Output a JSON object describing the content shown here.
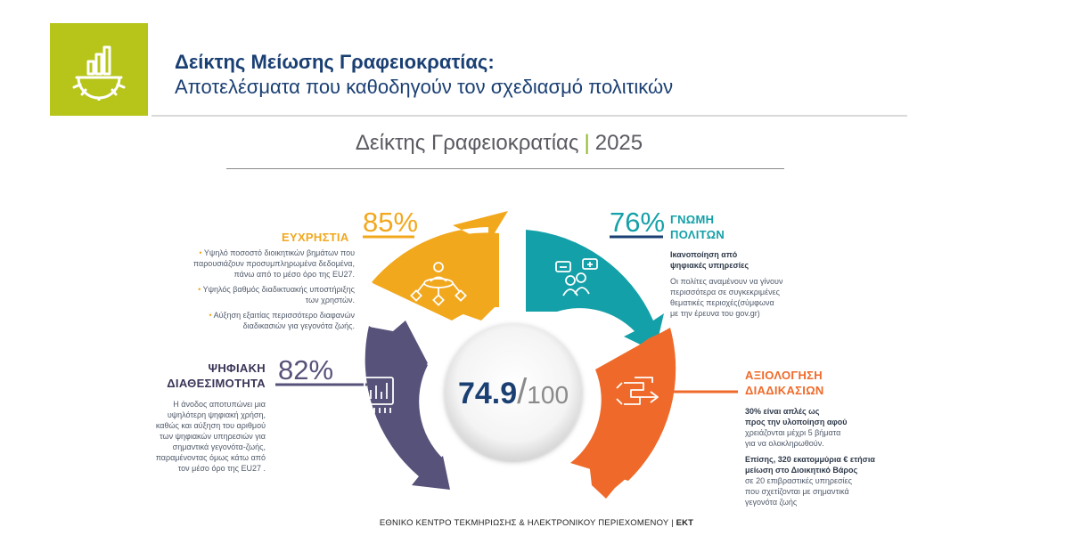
{
  "header": {
    "title": "Δείκτης Μείωσης Γραφειοκρατίας:",
    "subtitle": "Αποτελέσματα που καθοδηγούν τον σχεδιασμό πολιτικών",
    "logo_icon": "gear-chart-icon",
    "logo_color": "#b7c41a"
  },
  "chart_title": {
    "main": "Δείκτης Γραφειοκρατίας",
    "separator": "|",
    "year": "2025"
  },
  "center": {
    "score": "74.9",
    "slash": "/",
    "max": "100"
  },
  "segments": {
    "usability": {
      "label": "ΕΥΧΡΗΣΤΙΑ",
      "percent": "85%",
      "color": "#f2a81d",
      "icon": "workflow-person-icon",
      "bullets": [
        "Υψηλό ποσοστό διοικητικών βημάτων που παρουσιάζουν προσυμπληρωμένα δεδομένα, πάνω από το μέσο όρο της EU27.",
        "Υψηλός βαθμός διαδικτυακής υποστήριξης των χρηστών.",
        "Αύξηση εξαιτίας περισσότερο διαφανών διαδικασιών για γεγονότα ζωής."
      ]
    },
    "citizens": {
      "label_line1": "ΓΝΩΜΗ",
      "label_line2": "ΠΟΛΙΤΩΝ",
      "percent": "76%",
      "color": "#14a0a8",
      "icon": "chat-people-icon",
      "note_bold_line1": "Ικανοποίηση από",
      "note_bold_line2": "ψηφιακές υπηρεσίες",
      "note_lines": [
        "Οι πολίτες αναμένουν να γίνουν",
        "περισσότερα σε συγκεκριμένες",
        "θεματικές περιοχές(σύμφωνα",
        "με την έρευνα του gov.gr)"
      ]
    },
    "digital": {
      "label_line1": "ΨΗΦΙΑΚΗ",
      "label_line2": "ΔΙΑΘΕΣΙΜΟΤΗΤΑ",
      "percent": "82%",
      "color": "#56527a",
      "icon": "bar-chart-chip-icon",
      "note_lines": [
        "Η άνοδος αποτυπώνει μια",
        "υψηλότερη ψηφιακή χρήση,",
        "καθώς και αύξηση του αριθμού",
        "των ψηφιακών υπηρεσιών για",
        "σημαντικά γεγονότα-ζωής,",
        "παραμένοντας όμως κάτω από",
        "τον μέσο όρο της EU27 ."
      ]
    },
    "procedures": {
      "label_line1": "ΑΞΙΟΛΟΓΗΣΗ",
      "label_line2": "ΔΙΑΔΙΚΑΣΙΩΝ",
      "color": "#ef6a2a",
      "icon": "process-flow-icon",
      "note1_lines": [
        "30% είναι απλές ως",
        "προς την υλοποίηση αφού",
        "χρειάζονται μέχρι 5 βήματα",
        "για να ολοκληρωθούν."
      ],
      "note2_bold_line1": "Επίσης, 320 εκατομμύρια € ετήσια",
      "note2_bold_line2": "μείωση στο Διοικητικό Βάρος",
      "note2_lines": [
        "σε 20 επιβραστικές υπηρεσίες",
        "που σχετίζονται με σημαντικά",
        "γεγονότα ζωής"
      ]
    }
  },
  "footer": {
    "text": "ΕΘΝΙΚΟ ΚΕΝΤΡΟ ΤΕΚΜΗΡΙΩΣΗΣ & ΗΛΕΚΤΡΟΝΙΚΟΥ ΠΕΡΙΕΧΟΜΕΝΟΥ |",
    "org": "ΕΚΤ"
  }
}
